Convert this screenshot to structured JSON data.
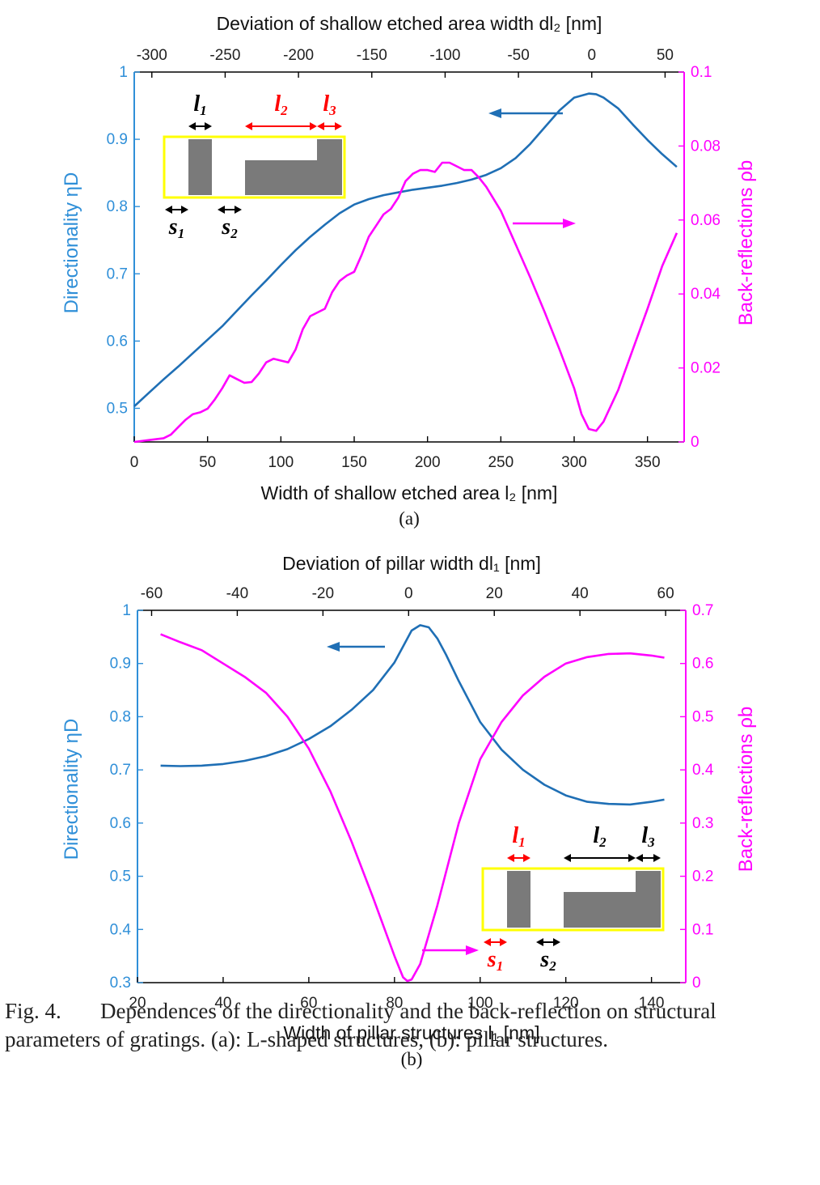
{
  "colors": {
    "blue": "#1f6fb5",
    "magenta": "#ff00ff",
    "axis_blue": "#2f8fd8",
    "axis_magenta": "#ff00ff",
    "inset_gray": "#7a7a7a",
    "inset_border": "#ffff00",
    "red": "#ff0000",
    "black": "#000000"
  },
  "chart_data": [
    {
      "type": "line",
      "panel_label": "(a)",
      "xlabel_bottom": "Width of shallow etched area l₂ [nm]",
      "xlabel_top": "Deviation of shallow etched area width dl₂ [nm]",
      "ylabel_left": "Directionality ηD",
      "ylabel_right": "Back-reflections ρb",
      "xlim": [
        0,
        375
      ],
      "top_xlim": [
        -312,
        63
      ],
      "ylim_left": [
        0.45,
        1.0
      ],
      "ylim_right": [
        0,
        0.1
      ],
      "x_ticks": [
        "0",
        "50",
        "100",
        "150",
        "200",
        "250",
        "300",
        "350"
      ],
      "x_tick_values": [
        0,
        50,
        100,
        150,
        200,
        250,
        300,
        350
      ],
      "top_ticks": [
        "-300",
        "-250",
        "-200",
        "-150",
        "-100",
        "-50",
        "0",
        "50"
      ],
      "top_tick_values": [
        -300,
        -250,
        -200,
        -150,
        -100,
        -50,
        0,
        50
      ],
      "y_left_ticks": [
        "1",
        "0.9",
        "0.8",
        "0.7",
        "0.6",
        "0.5"
      ],
      "y_left_tick_values": [
        1,
        0.9,
        0.8,
        0.7,
        0.6,
        0.5
      ],
      "y_right_ticks": [
        "0.1",
        "0.08",
        "0.06",
        "0.04",
        "0.02",
        "0"
      ],
      "y_right_tick_values": [
        0.1,
        0.08,
        0.06,
        0.04,
        0.02,
        0
      ],
      "series": [
        {
          "name": "Directionality",
          "axis": "left",
          "color": "#1f6fb5",
          "points": [
            [
              0,
              0.503
            ],
            [
              10,
              0.523
            ],
            [
              20,
              0.543
            ],
            [
              30,
              0.562
            ],
            [
              40,
              0.582
            ],
            [
              50,
              0.602
            ],
            [
              60,
              0.622
            ],
            [
              70,
              0.645
            ],
            [
              80,
              0.668
            ],
            [
              90,
              0.69
            ],
            [
              100,
              0.713
            ],
            [
              110,
              0.735
            ],
            [
              120,
              0.755
            ],
            [
              130,
              0.773
            ],
            [
              140,
              0.79
            ],
            [
              150,
              0.803
            ],
            [
              160,
              0.811
            ],
            [
              170,
              0.817
            ],
            [
              180,
              0.821
            ],
            [
              190,
              0.825
            ],
            [
              200,
              0.828
            ],
            [
              210,
              0.831
            ],
            [
              220,
              0.835
            ],
            [
              230,
              0.84
            ],
            [
              240,
              0.847
            ],
            [
              250,
              0.857
            ],
            [
              260,
              0.872
            ],
            [
              270,
              0.893
            ],
            [
              280,
              0.918
            ],
            [
              290,
              0.943
            ],
            [
              300,
              0.962
            ],
            [
              310,
              0.968
            ],
            [
              315,
              0.967
            ],
            [
              320,
              0.962
            ],
            [
              330,
              0.946
            ],
            [
              340,
              0.922
            ],
            [
              350,
              0.899
            ],
            [
              360,
              0.878
            ],
            [
              370,
              0.859
            ]
          ]
        },
        {
          "name": "Back-reflections",
          "axis": "right",
          "color": "#ff00ff",
          "points": [
            [
              0,
              0
            ],
            [
              10,
              0.0005
            ],
            [
              20,
              0.001
            ],
            [
              25,
              0.002
            ],
            [
              30,
              0.004
            ],
            [
              35,
              0.006
            ],
            [
              40,
              0.0075
            ],
            [
              45,
              0.008
            ],
            [
              50,
              0.009
            ],
            [
              55,
              0.0115
            ],
            [
              60,
              0.0145
            ],
            [
              65,
              0.018
            ],
            [
              70,
              0.017
            ],
            [
              75,
              0.016
            ],
            [
              80,
              0.0162
            ],
            [
              85,
              0.0185
            ],
            [
              90,
              0.0215
            ],
            [
              95,
              0.0225
            ],
            [
              100,
              0.022
            ],
            [
              105,
              0.0215
            ],
            [
              110,
              0.025
            ],
            [
              115,
              0.0305
            ],
            [
              120,
              0.034
            ],
            [
              125,
              0.035
            ],
            [
              130,
              0.036
            ],
            [
              135,
              0.0405
            ],
            [
              140,
              0.0435
            ],
            [
              145,
              0.045
            ],
            [
              150,
              0.046
            ],
            [
              155,
              0.0505
            ],
            [
              160,
              0.0555
            ],
            [
              165,
              0.0585
            ],
            [
              170,
              0.0615
            ],
            [
              175,
              0.063
            ],
            [
              180,
              0.066
            ],
            [
              185,
              0.0705
            ],
            [
              190,
              0.0725
            ],
            [
              195,
              0.0735
            ],
            [
              200,
              0.0735
            ],
            [
              205,
              0.073
            ],
            [
              210,
              0.0755
            ],
            [
              215,
              0.0755
            ],
            [
              220,
              0.0745
            ],
            [
              225,
              0.0735
            ],
            [
              230,
              0.0735
            ],
            [
              235,
              0.0715
            ],
            [
              240,
              0.069
            ],
            [
              250,
              0.0625
            ],
            [
              260,
              0.0535
            ],
            [
              270,
              0.0445
            ],
            [
              280,
              0.035
            ],
            [
              290,
              0.025
            ],
            [
              300,
              0.0145
            ],
            [
              305,
              0.0075
            ],
            [
              310,
              0.0035
            ],
            [
              315,
              0.003
            ],
            [
              320,
              0.0055
            ],
            [
              330,
              0.014
            ],
            [
              340,
              0.025
            ],
            [
              350,
              0.036
            ],
            [
              360,
              0.0475
            ],
            [
              370,
              0.0565
            ]
          ]
        }
      ],
      "inset": {
        "l1": "l1",
        "l2": "l2",
        "l3": "l3",
        "s1": "s1",
        "s2": "s2"
      }
    },
    {
      "type": "line",
      "panel_label": "(b)",
      "xlabel_bottom": "Width of pillar structures l₁ [nm]",
      "xlabel_top": "Deviation of pillar width dl₁ [nm]",
      "ylabel_left": "Directionality ηD",
      "ylabel_right": "Back-reflections ρb",
      "xlim": [
        20,
        148
      ],
      "top_xlim": [
        -63.3,
        64.7
      ],
      "ylim_left": [
        0.3,
        1.0
      ],
      "ylim_right": [
        0,
        0.7
      ],
      "x_ticks": [
        "20",
        "40",
        "60",
        "80",
        "100",
        "120",
        "140"
      ],
      "x_tick_values": [
        20,
        40,
        60,
        80,
        100,
        120,
        140
      ],
      "top_ticks": [
        "-60",
        "-40",
        "-20",
        "0",
        "20",
        "40",
        "60"
      ],
      "top_tick_values": [
        -60,
        -40,
        -20,
        0,
        20,
        40,
        60
      ],
      "y_left_ticks": [
        "1",
        "0.9",
        "0.8",
        "0.7",
        "0.6",
        "0.5",
        "0.4",
        "0.3"
      ],
      "y_left_tick_values": [
        1,
        0.9,
        0.8,
        0.7,
        0.6,
        0.5,
        0.4,
        0.3
      ],
      "y_right_ticks": [
        "0.7",
        "0.6",
        "0.5",
        "0.4",
        "0.3",
        "0.2",
        "0.1",
        "0"
      ],
      "y_right_tick_values": [
        0.7,
        0.6,
        0.5,
        0.4,
        0.3,
        0.2,
        0.1,
        0
      ],
      "series": [
        {
          "name": "Directionality",
          "axis": "left",
          "color": "#1f6fb5",
          "points": [
            [
              25.4,
              0.708
            ],
            [
              30,
              0.707
            ],
            [
              35,
              0.708
            ],
            [
              40,
              0.711
            ],
            [
              45,
              0.717
            ],
            [
              50,
              0.726
            ],
            [
              55,
              0.739
            ],
            [
              60,
              0.758
            ],
            [
              65,
              0.782
            ],
            [
              70,
              0.813
            ],
            [
              75,
              0.85
            ],
            [
              80,
              0.902
            ],
            [
              82,
              0.932
            ],
            [
              84,
              0.962
            ],
            [
              86,
              0.972
            ],
            [
              88,
              0.968
            ],
            [
              90,
              0.947
            ],
            [
              92,
              0.917
            ],
            [
              95,
              0.867
            ],
            [
              100,
              0.79
            ],
            [
              105,
              0.738
            ],
            [
              110,
              0.7
            ],
            [
              115,
              0.672
            ],
            [
              120,
              0.652
            ],
            [
              125,
              0.64
            ],
            [
              130,
              0.636
            ],
            [
              135,
              0.635
            ],
            [
              140,
              0.64
            ],
            [
              143,
              0.644
            ]
          ]
        },
        {
          "name": "Back-reflections",
          "axis": "right",
          "color": "#ff00ff",
          "points": [
            [
              25.4,
              0.655
            ],
            [
              30,
              0.64
            ],
            [
              35,
              0.625
            ],
            [
              40,
              0.6
            ],
            [
              45,
              0.575
            ],
            [
              50,
              0.545
            ],
            [
              55,
              0.5
            ],
            [
              60,
              0.44
            ],
            [
              65,
              0.36
            ],
            [
              70,
              0.265
            ],
            [
              75,
              0.16
            ],
            [
              80,
              0.05
            ],
            [
              82,
              0.01
            ],
            [
              83,
              0.003
            ],
            [
              84,
              0.006
            ],
            [
              86,
              0.035
            ],
            [
              90,
              0.145
            ],
            [
              95,
              0.3
            ],
            [
              100,
              0.42
            ],
            [
              105,
              0.49
            ],
            [
              110,
              0.54
            ],
            [
              115,
              0.575
            ],
            [
              120,
              0.6
            ],
            [
              125,
              0.612
            ],
            [
              130,
              0.618
            ],
            [
              135,
              0.619
            ],
            [
              140,
              0.615
            ],
            [
              143,
              0.611
            ]
          ]
        }
      ],
      "inset": {
        "l1": "l1",
        "l2": "l2",
        "l3": "l3",
        "s1": "s1",
        "s2": "s2"
      }
    }
  ],
  "caption": {
    "label": "Fig. 4.",
    "text_line1": "Dependences of the directionality and the back-reflection on structural",
    "text_line2": "parameters of gratings. (a): L-shaped structures, (b): pillar structures."
  }
}
